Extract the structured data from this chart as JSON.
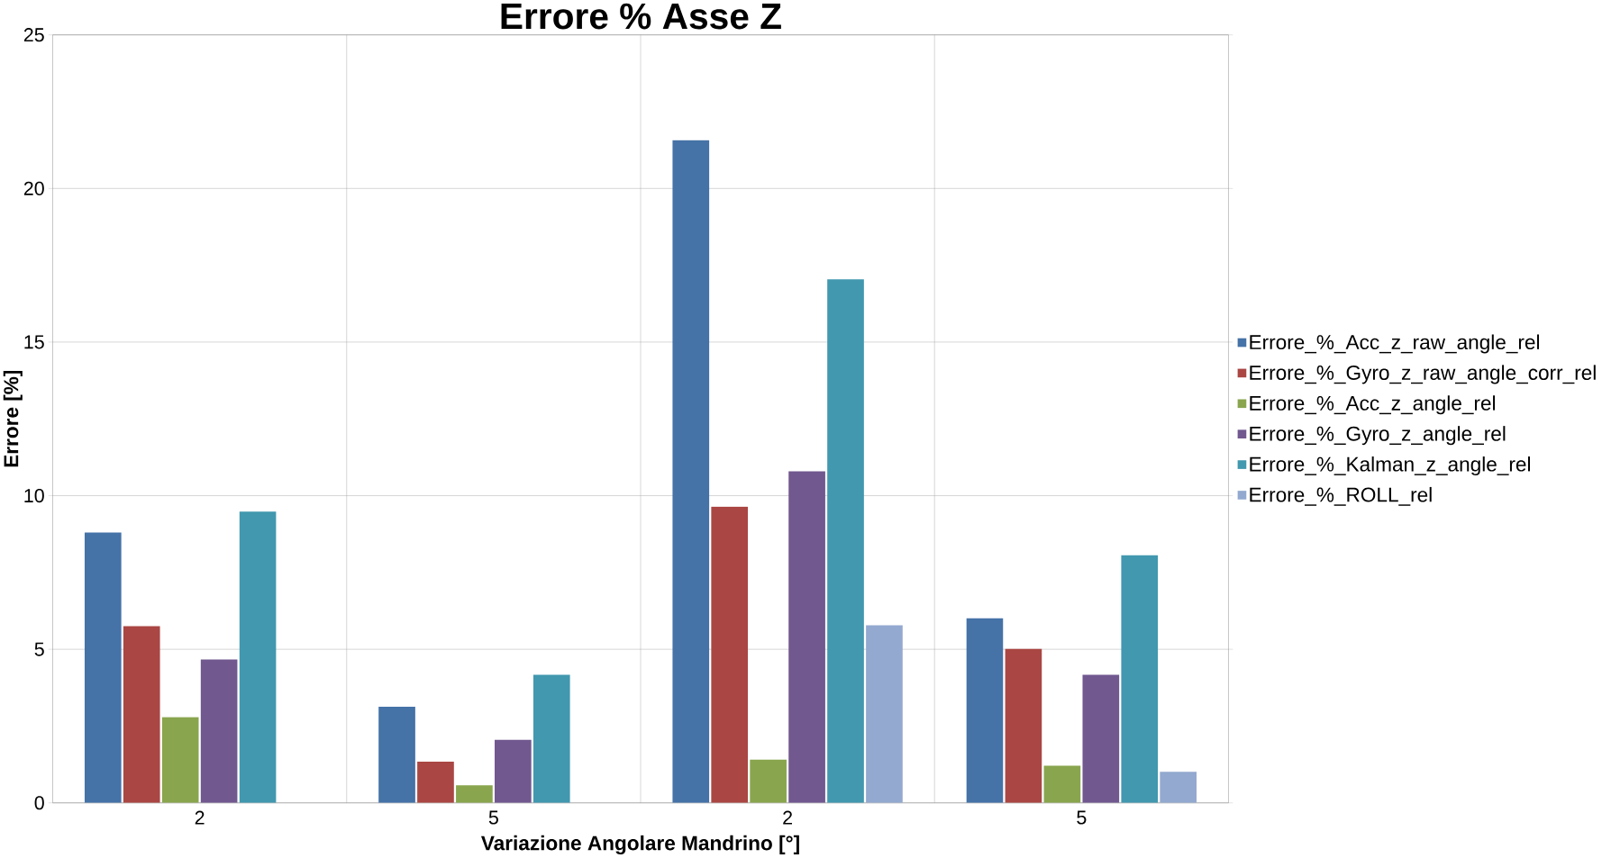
{
  "chart_data": {
    "type": "bar",
    "title": "Errore % Asse Z",
    "xlabel": "Variazione Angolare Mandrino [°]",
    "ylabel": "Errore [%]",
    "categories": [
      "2",
      "5",
      "2",
      "5"
    ],
    "series": [
      {
        "name": "Errore_%_Acc_z_raw_angle_rel",
        "color": "#4572a7",
        "values": [
          8.8,
          3.13,
          21.57,
          6.01
        ]
      },
      {
        "name": "Errore_%_Gyro_z_raw_angle_corr_rel",
        "color": "#aa4643",
        "values": [
          5.75,
          1.34,
          9.64,
          5.01
        ]
      },
      {
        "name": "Errore_%_Acc_z_angle_rel",
        "color": "#89a54e",
        "values": [
          2.79,
          0.57,
          1.41,
          1.21
        ]
      },
      {
        "name": "Errore_%_Gyro_z_angle_rel",
        "color": "#71588f",
        "values": [
          4.67,
          2.05,
          10.79,
          4.17
        ]
      },
      {
        "name": "Errore_%_Kalman_z_angle_rel",
        "color": "#4198af",
        "values": [
          9.48,
          4.17,
          17.04,
          8.06
        ]
      },
      {
        "name": "Errore_%_ROLL_rel",
        "color": "#93a9cf",
        "values": [
          null,
          null,
          5.78,
          1.01
        ]
      }
    ],
    "ylim": [
      0,
      25
    ],
    "yticks": [
      0,
      5,
      10,
      15,
      20,
      25
    ],
    "grid": true,
    "legend": "right"
  }
}
